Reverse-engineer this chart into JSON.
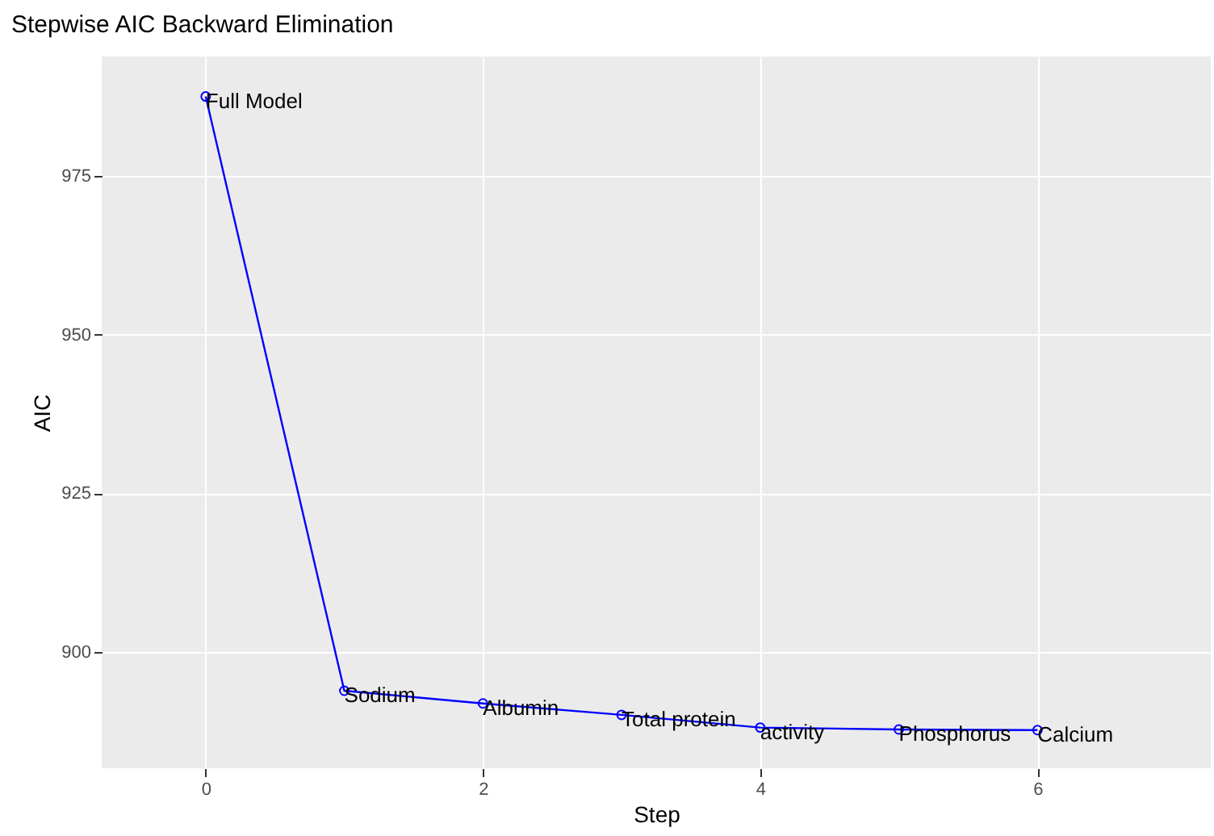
{
  "chart_data": {
    "type": "line",
    "title": "Stepwise AIC Backward Elimination",
    "xlabel": "Step",
    "ylabel": "AIC",
    "x": [
      0,
      1,
      2,
      3,
      4,
      5,
      6
    ],
    "series": [
      {
        "color": "#0000ff",
        "values": [
          987.5,
          893.9,
          891.9,
          890.1,
          888.1,
          887.8,
          887.7
        ]
      }
    ],
    "annotations": [
      {
        "text": "Full Model",
        "x": 0,
        "y": 987.5
      },
      {
        "text": "Sodium",
        "x": 1,
        "y": 893.9
      },
      {
        "text": "Albumin",
        "x": 2,
        "y": 891.9
      },
      {
        "text": "Total protein",
        "x": 3,
        "y": 890.1
      },
      {
        "text": "activity",
        "x": 4,
        "y": 888.1
      },
      {
        "text": "Phosphorus",
        "x": 5,
        "y": 887.8
      },
      {
        "text": "Calcium",
        "x": 6,
        "y": 887.7
      }
    ],
    "xlim": [
      -0.75,
      7.25
    ],
    "xticks": [
      0,
      2,
      4,
      6
    ],
    "ylim": [
      881.7,
      993.8
    ],
    "yticks": [
      900,
      925,
      950,
      975
    ],
    "grid": true,
    "marker": "circle",
    "line_style": "solid"
  }
}
